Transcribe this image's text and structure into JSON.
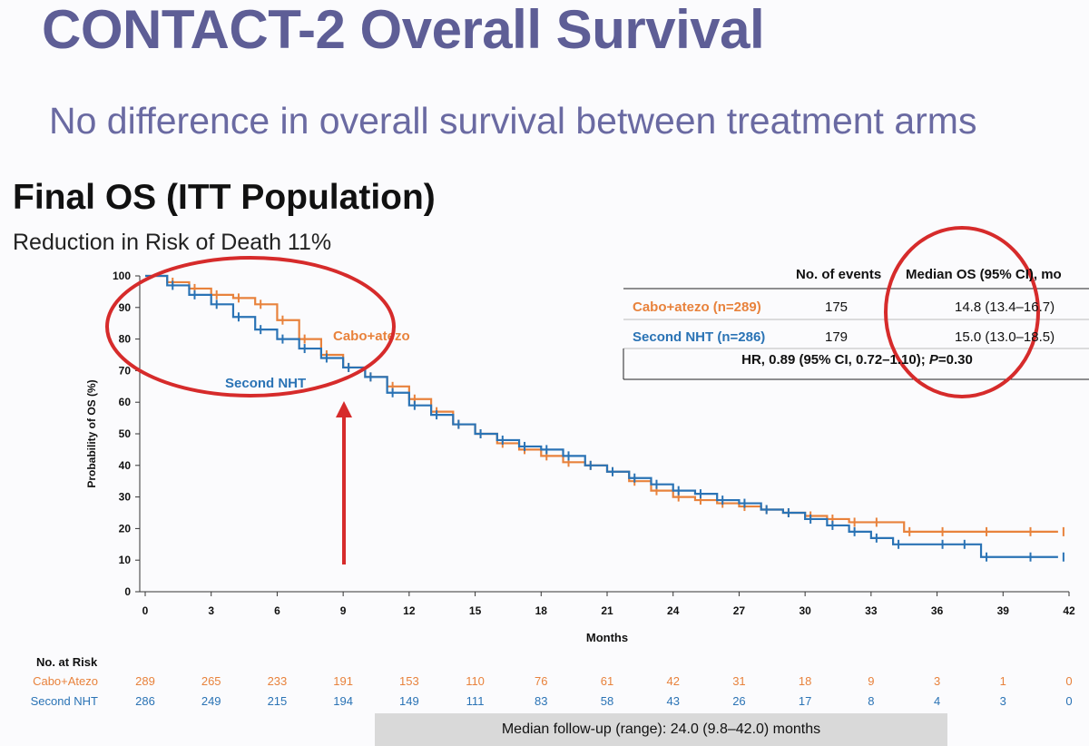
{
  "slide": {
    "title": "CONTACT-2 Overall Survival",
    "subtitle": "No difference in overall survival between treatment arms",
    "section_title": "Final OS (ITT Population)",
    "section_subtitle": "Reduction in Risk of Death 11%"
  },
  "stats_table": {
    "header_events": "No. of events",
    "header_median": "Median OS (95% CI), mo",
    "rows": [
      {
        "arm": "Cabo+atezo (n=289)",
        "events": "175",
        "median": "14.8 (13.4–16.7)",
        "color": "#e8823c"
      },
      {
        "arm": "Second NHT (n=286)",
        "events": "179",
        "median": "15.0 (13.0–18.5)",
        "color": "#2a73b5"
      }
    ],
    "hr_prefix": "HR, 0.89 (95% CI, 0.72–1.10); ",
    "hr_p_label": "P",
    "hr_p_value": "=0.30"
  },
  "risk_table": {
    "title": "No. at Risk",
    "rows": [
      {
        "label": "Cabo+Atezo",
        "color": "#e8823c",
        "values": [
          "289",
          "265",
          "233",
          "191",
          "153",
          "110",
          "76",
          "61",
          "42",
          "31",
          "18",
          "9",
          "3",
          "1",
          "0"
        ]
      },
      {
        "label": "Second NHT",
        "color": "#2a73b5",
        "values": [
          "286",
          "249",
          "215",
          "194",
          "149",
          "111",
          "83",
          "58",
          "43",
          "26",
          "17",
          "8",
          "4",
          "3",
          "0"
        ]
      }
    ]
  },
  "footer": "Median follow-up (range): 24.0 (9.8–42.0) months",
  "annotation_color": "#d62b2b",
  "chart_data": {
    "type": "line",
    "xlabel": "Months",
    "ylabel": "Probability of OS (%)",
    "xlim": [
      0,
      42
    ],
    "ylim": [
      0,
      100
    ],
    "xticks": [
      0,
      3,
      6,
      9,
      12,
      15,
      18,
      21,
      24,
      27,
      30,
      33,
      36,
      39,
      42
    ],
    "yticks": [
      0,
      10,
      20,
      30,
      40,
      50,
      60,
      70,
      80,
      90,
      100
    ],
    "series": [
      {
        "name": "Cabo+atezo",
        "color": "#e8823c",
        "x": [
          0,
          1,
          2,
          3,
          4,
          5,
          6,
          7,
          8,
          9,
          10,
          11,
          12,
          13,
          14,
          15,
          16,
          17,
          18,
          19,
          20,
          21,
          22,
          23,
          24,
          25,
          26,
          27,
          28,
          29,
          30,
          31,
          32,
          33,
          34.5,
          36,
          38,
          40,
          41.5
        ],
        "y": [
          100,
          98,
          96,
          94,
          93,
          91,
          86,
          80,
          75,
          71,
          68,
          65,
          61,
          57,
          53,
          50,
          47,
          45,
          43,
          41,
          40,
          38,
          35,
          32,
          30,
          29,
          28,
          27,
          26,
          25,
          24,
          23,
          22,
          22,
          19,
          19,
          19,
          19,
          19
        ]
      },
      {
        "name": "Second NHT",
        "color": "#2a73b5",
        "x": [
          0,
          1,
          2,
          3,
          4,
          5,
          6,
          7,
          8,
          9,
          10,
          11,
          12,
          13,
          14,
          15,
          16,
          17,
          18,
          19,
          20,
          21,
          22,
          23,
          24,
          25,
          26,
          27,
          28,
          29,
          30,
          31,
          32,
          33,
          34,
          36,
          37,
          38,
          40,
          41.5
        ],
        "y": [
          100,
          97,
          94,
          91,
          87,
          83,
          80,
          77,
          74,
          71,
          68,
          63,
          59,
          56,
          53,
          50,
          48,
          46,
          45,
          43,
          40,
          38,
          36,
          34,
          32,
          31,
          29,
          28,
          26,
          25,
          23,
          21,
          19,
          17,
          15,
          15,
          15,
          11,
          11,
          11
        ]
      }
    ],
    "annotations": [
      {
        "text": "Cabo+atezo",
        "series": "Cabo+atezo"
      },
      {
        "text": "Second NHT",
        "series": "Second NHT"
      }
    ],
    "grid": false
  }
}
